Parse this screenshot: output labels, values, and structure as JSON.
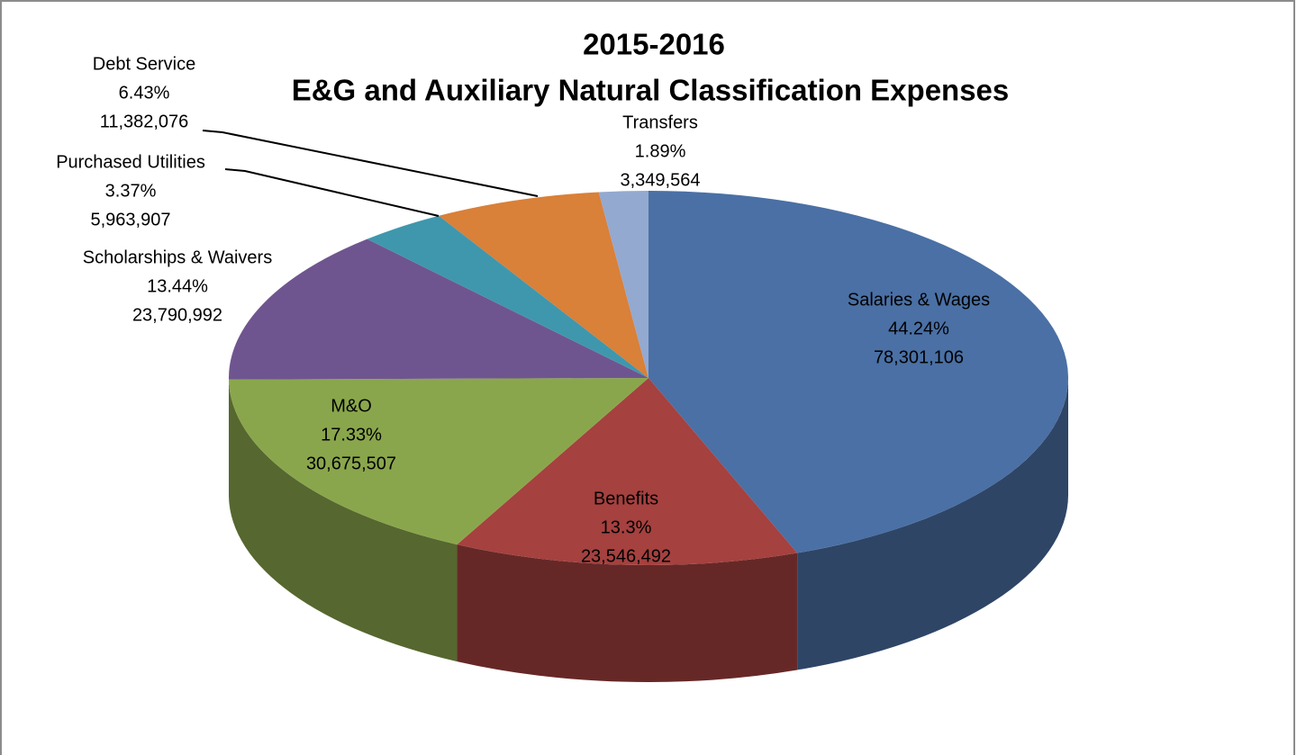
{
  "chart_data": {
    "type": "pie",
    "title": "2015-2016",
    "subtitle": "E&G and Auxiliary Natural Classification Expenses",
    "categories": [
      "Salaries & Wages",
      "Benefits",
      "M&O",
      "Scholarships & Waivers",
      "Purchased Utilities",
      "Debt Service",
      "Transfers"
    ],
    "values": [
      78301106,
      23546492,
      30675507,
      23790992,
      5963907,
      11382076,
      3349564
    ],
    "value_labels": [
      "78,301,106",
      "23,546,492",
      "30,675,507",
      "23,790,992",
      "5,963,907",
      "11,382,076",
      "3,349,564"
    ],
    "percent_labels": [
      "44.24%",
      "13.3%",
      "17.33%",
      "13.44%",
      "3.37%",
      "6.43%",
      "1.89%"
    ],
    "colors": [
      "#4a70a5",
      "#a5413f",
      "#8aa64c",
      "#6f558f",
      "#3f97ad",
      "#d98039",
      "#93a9d0"
    ]
  }
}
